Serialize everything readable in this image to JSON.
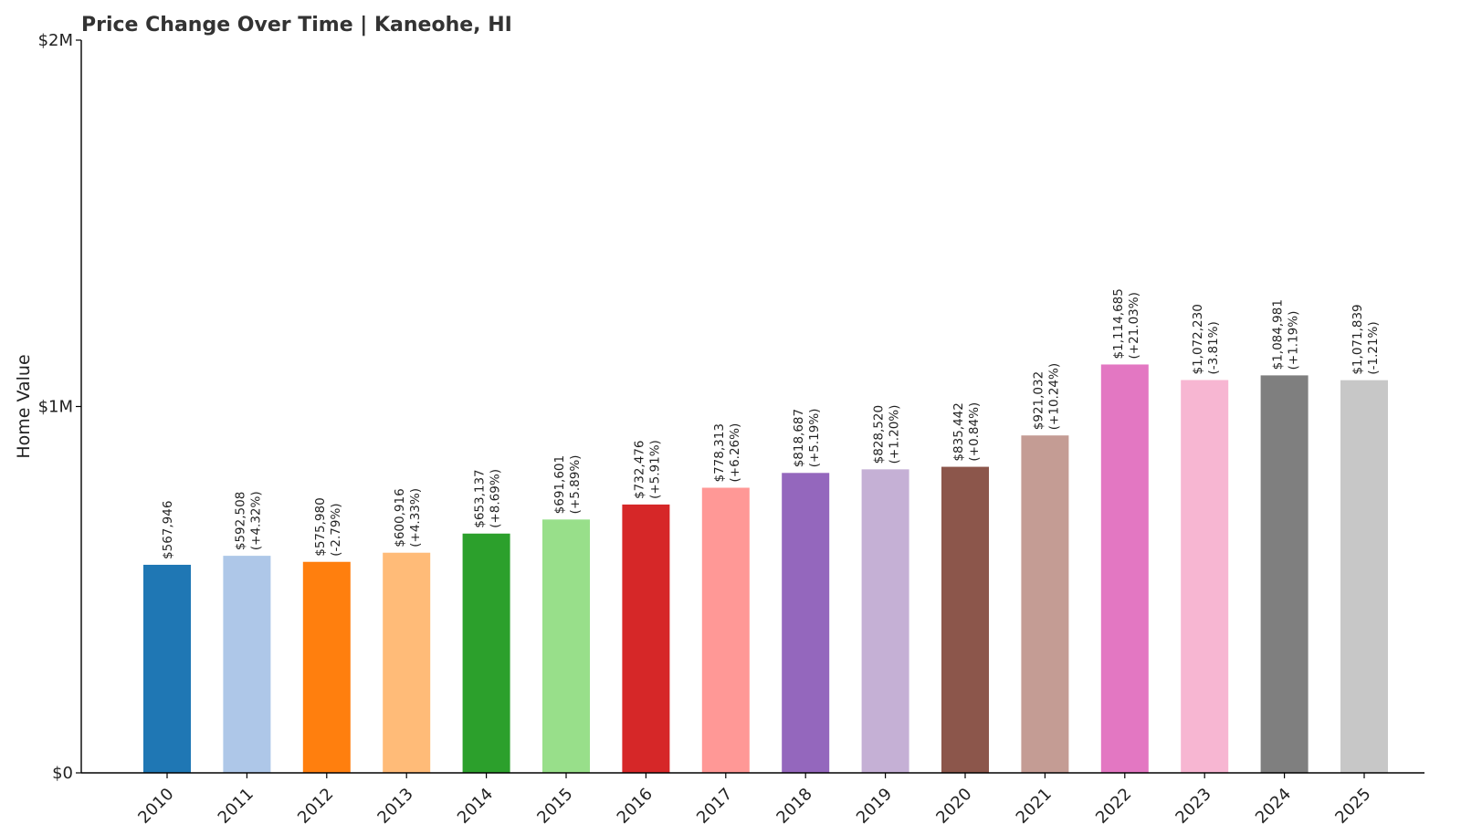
{
  "chart_data": {
    "type": "bar",
    "title": "Price Change Over Time | Kaneohe, HI",
    "xlabel": "",
    "ylabel": "Home Value",
    "ylim": [
      0,
      2000000
    ],
    "yticks": [
      {
        "value": 0,
        "label": "$0"
      },
      {
        "value": 1000000,
        "label": "$1M"
      },
      {
        "value": 2000000,
        "label": "$2M"
      }
    ],
    "grid": false,
    "legend": "none",
    "categories": [
      "2010",
      "2011",
      "2012",
      "2013",
      "2014",
      "2015",
      "2016",
      "2017",
      "2018",
      "2019",
      "2020",
      "2021",
      "2022",
      "2023",
      "2024",
      "2025"
    ],
    "values": [
      567946,
      592508,
      575980,
      600916,
      653137,
      691601,
      732476,
      778313,
      818687,
      828520,
      835442,
      921032,
      1114685,
      1072230,
      1084981,
      1071839
    ],
    "value_labels": [
      "$567,946",
      "$592,508",
      "$575,980",
      "$600,916",
      "$653,137",
      "$691,601",
      "$732,476",
      "$778,313",
      "$818,687",
      "$828,520",
      "$835,442",
      "$921,032",
      "$1,114,685",
      "$1,072,230",
      "$1,084,981",
      "$1,071,839"
    ],
    "change_labels": [
      "",
      "(+4.32%)",
      "(-2.79%)",
      "(+4.33%)",
      "(+8.69%)",
      "(+5.89%)",
      "(+5.91%)",
      "(+6.26%)",
      "(+5.19%)",
      "(+1.20%)",
      "(+0.84%)",
      "(+10.24%)",
      "(+21.03%)",
      "(-3.81%)",
      "(+1.19%)",
      "(-1.21%)"
    ],
    "colors": [
      "#1f77b4",
      "#aec7e8",
      "#ff7f0e",
      "#ffbb78",
      "#2ca02c",
      "#98df8a",
      "#d62728",
      "#ff9896",
      "#9467bd",
      "#c5b0d5",
      "#8c564b",
      "#c49c94",
      "#e377c2",
      "#f7b6d2",
      "#7f7f7f",
      "#c7c7c7"
    ]
  }
}
